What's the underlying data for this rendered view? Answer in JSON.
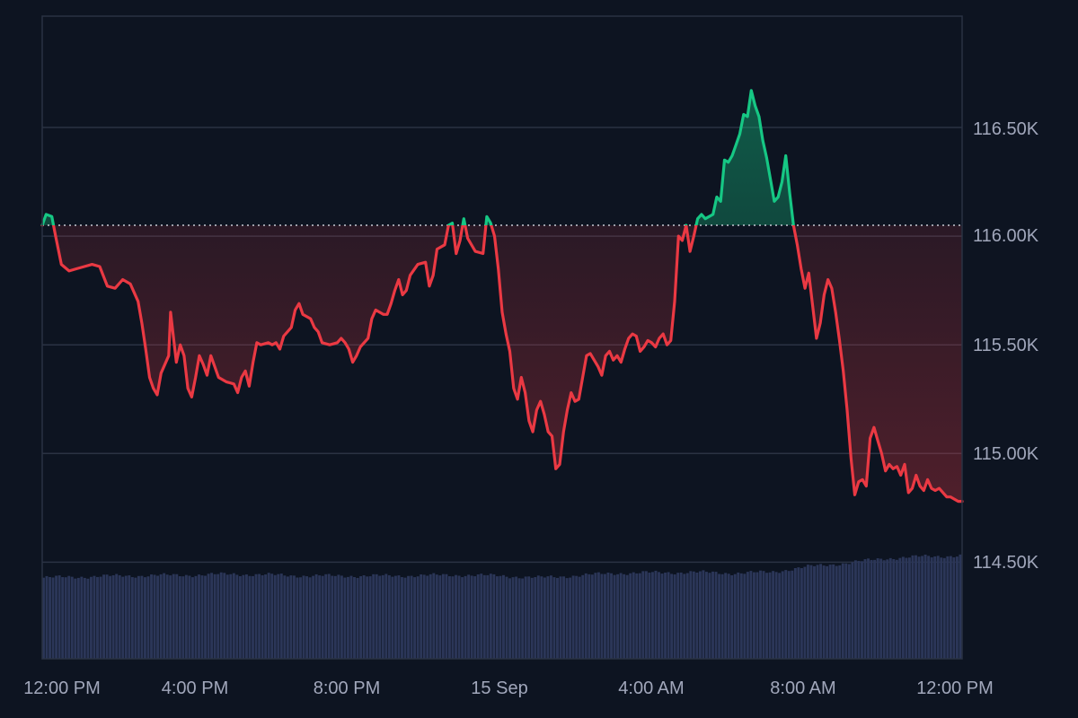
{
  "chart_data": {
    "type": "area",
    "baseline": 116050,
    "ylim": [
      114280,
      117050
    ],
    "ticks_y": [
      {
        "value": 116500,
        "label": "116.50K"
      },
      {
        "value": 116000,
        "label": "116.00K"
      },
      {
        "value": 115500,
        "label": "115.50K"
      },
      {
        "value": 115000,
        "label": "115.00K"
      },
      {
        "value": 114500,
        "label": "114.50K"
      }
    ],
    "ticks_x": [
      "12:00 PM",
      "4:00 PM",
      "8:00 PM",
      "15 Sep",
      "4:00 AM",
      "8:00 AM",
      "12:00 PM"
    ],
    "x_hours": [
      0,
      4,
      8,
      12,
      16,
      20,
      24
    ],
    "colors": {
      "up": "#16c784",
      "down": "#ea3943",
      "volume": "#2b3658",
      "grid": "#2a3243",
      "baseline": "#c8ccd6"
    },
    "price": [
      [
        0.0,
        116050
      ],
      [
        0.1,
        116100
      ],
      [
        0.25,
        116090
      ],
      [
        0.35,
        116000
      ],
      [
        0.5,
        115870
      ],
      [
        0.7,
        115840
      ],
      [
        0.9,
        115850
      ],
      [
        1.1,
        115860
      ],
      [
        1.3,
        115870
      ],
      [
        1.5,
        115860
      ],
      [
        1.7,
        115770
      ],
      [
        1.9,
        115760
      ],
      [
        2.1,
        115800
      ],
      [
        2.3,
        115780
      ],
      [
        2.5,
        115700
      ],
      [
        2.6,
        115600
      ],
      [
        2.7,
        115480
      ],
      [
        2.8,
        115350
      ],
      [
        2.9,
        115300
      ],
      [
        3.0,
        115270
      ],
      [
        3.1,
        115370
      ],
      [
        3.3,
        115450
      ],
      [
        3.35,
        115650
      ],
      [
        3.5,
        115420
      ],
      [
        3.6,
        115500
      ],
      [
        3.7,
        115450
      ],
      [
        3.8,
        115300
      ],
      [
        3.9,
        115260
      ],
      [
        4.0,
        115350
      ],
      [
        4.1,
        115450
      ],
      [
        4.2,
        115410
      ],
      [
        4.3,
        115360
      ],
      [
        4.4,
        115450
      ],
      [
        4.5,
        115400
      ],
      [
        4.6,
        115350
      ],
      [
        4.8,
        115330
      ],
      [
        5.0,
        115320
      ],
      [
        5.1,
        115280
      ],
      [
        5.2,
        115350
      ],
      [
        5.3,
        115380
      ],
      [
        5.4,
        115310
      ],
      [
        5.5,
        115420
      ],
      [
        5.6,
        115510
      ],
      [
        5.7,
        115500
      ],
      [
        5.9,
        115510
      ],
      [
        6.0,
        115500
      ],
      [
        6.1,
        115510
      ],
      [
        6.2,
        115480
      ],
      [
        6.3,
        115540
      ],
      [
        6.5,
        115580
      ],
      [
        6.6,
        115660
      ],
      [
        6.7,
        115690
      ],
      [
        6.8,
        115640
      ],
      [
        7.0,
        115620
      ],
      [
        7.1,
        115580
      ],
      [
        7.2,
        115560
      ],
      [
        7.3,
        115510
      ],
      [
        7.5,
        115500
      ],
      [
        7.7,
        115510
      ],
      [
        7.8,
        115530
      ],
      [
        7.9,
        115510
      ],
      [
        8.0,
        115480
      ],
      [
        8.1,
        115420
      ],
      [
        8.2,
        115450
      ],
      [
        8.3,
        115490
      ],
      [
        8.5,
        115530
      ],
      [
        8.6,
        115620
      ],
      [
        8.7,
        115660
      ],
      [
        8.9,
        115640
      ],
      [
        9.0,
        115640
      ],
      [
        9.1,
        115690
      ],
      [
        9.2,
        115750
      ],
      [
        9.3,
        115800
      ],
      [
        9.4,
        115730
      ],
      [
        9.5,
        115750
      ],
      [
        9.6,
        115820
      ],
      [
        9.8,
        115870
      ],
      [
        10.0,
        115880
      ],
      [
        10.1,
        115770
      ],
      [
        10.2,
        115820
      ],
      [
        10.3,
        115940
      ],
      [
        10.5,
        115960
      ],
      [
        10.6,
        116050
      ],
      [
        10.7,
        116060
      ],
      [
        10.8,
        115920
      ],
      [
        10.9,
        115980
      ],
      [
        11.0,
        116080
      ],
      [
        11.1,
        115990
      ],
      [
        11.3,
        115930
      ],
      [
        11.5,
        115920
      ],
      [
        11.6,
        116090
      ],
      [
        11.7,
        116060
      ],
      [
        11.8,
        116000
      ],
      [
        11.9,
        115850
      ],
      [
        12.0,
        115650
      ],
      [
        12.1,
        115550
      ],
      [
        12.2,
        115470
      ],
      [
        12.3,
        115300
      ],
      [
        12.4,
        115250
      ],
      [
        12.5,
        115350
      ],
      [
        12.6,
        115280
      ],
      [
        12.7,
        115150
      ],
      [
        12.8,
        115100
      ],
      [
        12.9,
        115200
      ],
      [
        13.0,
        115240
      ],
      [
        13.1,
        115180
      ],
      [
        13.2,
        115100
      ],
      [
        13.3,
        115080
      ],
      [
        13.4,
        114930
      ],
      [
        13.5,
        114950
      ],
      [
        13.6,
        115100
      ],
      [
        13.7,
        115200
      ],
      [
        13.8,
        115280
      ],
      [
        13.9,
        115240
      ],
      [
        14.0,
        115250
      ],
      [
        14.1,
        115350
      ],
      [
        14.2,
        115450
      ],
      [
        14.3,
        115460
      ],
      [
        14.4,
        115430
      ],
      [
        14.5,
        115400
      ],
      [
        14.6,
        115360
      ],
      [
        14.7,
        115450
      ],
      [
        14.8,
        115470
      ],
      [
        14.9,
        115430
      ],
      [
        15.0,
        115450
      ],
      [
        15.1,
        115420
      ],
      [
        15.2,
        115480
      ],
      [
        15.3,
        115530
      ],
      [
        15.4,
        115550
      ],
      [
        15.5,
        115540
      ],
      [
        15.6,
        115470
      ],
      [
        15.7,
        115490
      ],
      [
        15.8,
        115520
      ],
      [
        15.9,
        115510
      ],
      [
        16.0,
        115490
      ],
      [
        16.1,
        115530
      ],
      [
        16.2,
        115550
      ],
      [
        16.3,
        115500
      ],
      [
        16.4,
        115520
      ],
      [
        16.5,
        115700
      ],
      [
        16.6,
        116000
      ],
      [
        16.7,
        115980
      ],
      [
        16.8,
        116050
      ],
      [
        16.9,
        115930
      ],
      [
        17.0,
        116000
      ],
      [
        17.1,
        116080
      ],
      [
        17.2,
        116100
      ],
      [
        17.3,
        116080
      ],
      [
        17.5,
        116100
      ],
      [
        17.6,
        116180
      ],
      [
        17.7,
        116160
      ],
      [
        17.8,
        116350
      ],
      [
        17.9,
        116340
      ],
      [
        18.0,
        116370
      ],
      [
        18.1,
        116420
      ],
      [
        18.2,
        116470
      ],
      [
        18.3,
        116560
      ],
      [
        18.4,
        116550
      ],
      [
        18.5,
        116670
      ],
      [
        18.6,
        116600
      ],
      [
        18.7,
        116550
      ],
      [
        18.8,
        116440
      ],
      [
        18.9,
        116360
      ],
      [
        19.0,
        116260
      ],
      [
        19.1,
        116160
      ],
      [
        19.2,
        116180
      ],
      [
        19.3,
        116250
      ],
      [
        19.4,
        116370
      ],
      [
        19.5,
        116200
      ],
      [
        19.6,
        116050
      ],
      [
        19.7,
        115960
      ],
      [
        19.8,
        115850
      ],
      [
        19.9,
        115760
      ],
      [
        20.0,
        115830
      ],
      [
        20.1,
        115680
      ],
      [
        20.2,
        115530
      ],
      [
        20.3,
        115600
      ],
      [
        20.4,
        115730
      ],
      [
        20.5,
        115800
      ],
      [
        20.6,
        115760
      ],
      [
        20.7,
        115650
      ],
      [
        20.8,
        115520
      ],
      [
        20.9,
        115380
      ],
      [
        21.0,
        115200
      ],
      [
        21.1,
        114980
      ],
      [
        21.2,
        114810
      ],
      [
        21.3,
        114870
      ],
      [
        21.4,
        114880
      ],
      [
        21.5,
        114850
      ],
      [
        21.6,
        115070
      ],
      [
        21.7,
        115120
      ],
      [
        21.8,
        115060
      ],
      [
        21.9,
        115000
      ],
      [
        22.0,
        114920
      ],
      [
        22.1,
        114950
      ],
      [
        22.2,
        114930
      ],
      [
        22.3,
        114940
      ],
      [
        22.4,
        114900
      ],
      [
        22.5,
        114950
      ],
      [
        22.6,
        114820
      ],
      [
        22.7,
        114840
      ],
      [
        22.8,
        114900
      ],
      [
        22.9,
        114850
      ],
      [
        23.0,
        114830
      ],
      [
        23.1,
        114880
      ],
      [
        23.2,
        114840
      ],
      [
        23.3,
        114830
      ],
      [
        23.4,
        114840
      ],
      [
        23.5,
        114820
      ],
      [
        23.6,
        114800
      ],
      [
        23.7,
        114800
      ],
      [
        23.8,
        114790
      ],
      [
        23.9,
        114780
      ],
      [
        24.0,
        114780
      ]
    ],
    "volume_profile": [
      [
        0,
        0.44
      ],
      [
        2,
        0.45
      ],
      [
        4,
        0.455
      ],
      [
        5,
        0.46
      ],
      [
        7,
        0.45
      ],
      [
        9,
        0.45
      ],
      [
        11,
        0.455
      ],
      [
        12,
        0.45
      ],
      [
        13,
        0.44
      ],
      [
        15,
        0.465
      ],
      [
        17,
        0.47
      ],
      [
        18,
        0.465
      ],
      [
        19,
        0.47
      ],
      [
        20,
        0.5
      ],
      [
        21,
        0.52
      ],
      [
        22,
        0.545
      ],
      [
        23,
        0.555
      ],
      [
        24,
        0.56
      ]
    ]
  }
}
